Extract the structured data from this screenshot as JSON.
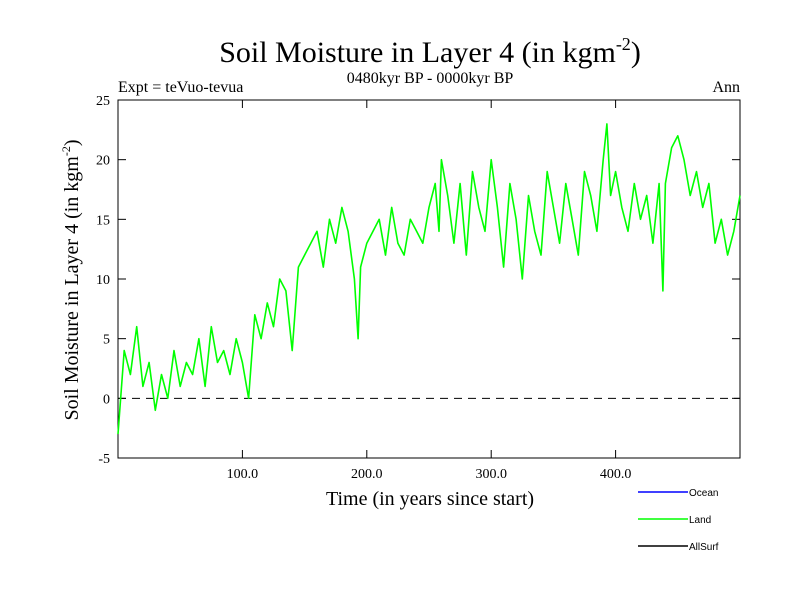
{
  "chart_data": {
    "type": "line",
    "title_main": "Soil Moisture in Layer 4 (in kgm",
    "title_sup": "-2",
    "title_close": ")",
    "subtitle_left": "Expt = teVuo-tevua",
    "subtitle_center": "0480kyr BP - 0000kyr BP",
    "subtitle_right": "Ann",
    "xlabel": "Time (in years since start)",
    "ylabel_main": "Soil Moisture in Layer 4 (in kgm",
    "ylabel_sup": "-2",
    "ylabel_close": ")",
    "xlim": [
      0,
      500
    ],
    "ylim": [
      -5,
      25
    ],
    "xticks": [
      100,
      200,
      300,
      400
    ],
    "xtick_labels": [
      "100.0",
      "200.0",
      "300.0",
      "400.0"
    ],
    "yticks": [
      -5,
      0,
      5,
      10,
      15,
      20,
      25
    ],
    "ytick_labels": [
      "-5",
      "0",
      "5",
      "10",
      "15",
      "20",
      "25"
    ],
    "zero_line": 0,
    "legend": [
      {
        "name": "Ocean",
        "color": "#0000ff"
      },
      {
        "name": "Land",
        "color": "#00ff00"
      },
      {
        "name": "AllSurf",
        "color": "#000000"
      }
    ],
    "series": [
      {
        "name": "Land",
        "color": "#00ff00",
        "x": [
          0,
          5,
          10,
          15,
          20,
          25,
          30,
          35,
          40,
          45,
          50,
          55,
          60,
          65,
          70,
          75,
          80,
          85,
          90,
          95,
          100,
          105,
          110,
          115,
          120,
          125,
          130,
          135,
          140,
          145,
          150,
          155,
          160,
          165,
          170,
          175,
          180,
          185,
          190,
          193,
          195,
          200,
          205,
          210,
          215,
          220,
          225,
          230,
          235,
          240,
          245,
          250,
          255,
          258,
          260,
          265,
          270,
          275,
          280,
          285,
          290,
          295,
          300,
          305,
          310,
          315,
          320,
          325,
          330,
          335,
          340,
          345,
          350,
          355,
          360,
          365,
          370,
          375,
          380,
          385,
          390,
          393,
          396,
          400,
          405,
          410,
          415,
          420,
          425,
          430,
          435,
          438,
          440,
          445,
          450,
          455,
          460,
          465,
          470,
          475,
          480,
          485,
          490,
          495,
          500
        ],
        "y": [
          -3,
          4,
          2,
          6,
          1,
          3,
          -1,
          2,
          0,
          4,
          1,
          3,
          2,
          5,
          1,
          6,
          3,
          4,
          2,
          5,
          3,
          0,
          7,
          5,
          8,
          6,
          10,
          9,
          4,
          11,
          12,
          13,
          14,
          11,
          15,
          13,
          16,
          14,
          10,
          5,
          11,
          13,
          14,
          15,
          12,
          16,
          13,
          12,
          15,
          14,
          13,
          16,
          18,
          14,
          20,
          17,
          13,
          18,
          12,
          19,
          16,
          14,
          20,
          16,
          11,
          18,
          15,
          10,
          17,
          14,
          12,
          19,
          16,
          13,
          18,
          15,
          12,
          19,
          17,
          14,
          20,
          23,
          17,
          19,
          16,
          14,
          18,
          15,
          17,
          13,
          18,
          9,
          18,
          21,
          22,
          20,
          17,
          19,
          16,
          18,
          13,
          15,
          12,
          14,
          17
        ]
      }
    ]
  }
}
